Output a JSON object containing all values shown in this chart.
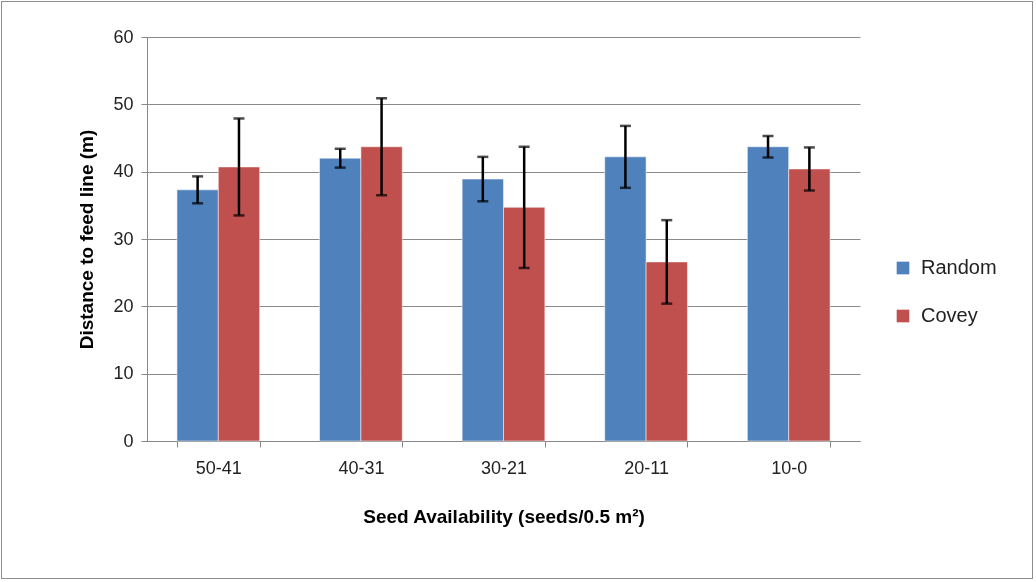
{
  "chart_data": {
    "type": "bar",
    "xlabel": "Seed Availability (seeds/0.5 m²)",
    "ylabel": "Distance to feed line (m)",
    "categories": [
      "50-41",
      "40-31",
      "30-21",
      "20-11",
      "10-0"
    ],
    "series": [
      {
        "name": "Random",
        "color": "#4f81bd",
        "values": [
          37.3,
          42.0,
          38.9,
          42.2,
          43.7
        ],
        "errors": [
          2.0,
          1.4,
          3.3,
          4.6,
          1.6
        ]
      },
      {
        "name": "Covey",
        "color": "#c0504d",
        "values": [
          40.7,
          43.7,
          34.7,
          26.6,
          40.4
        ],
        "errors": [
          7.2,
          7.2,
          9.0,
          6.2,
          3.2
        ]
      }
    ],
    "ylim": [
      0,
      60
    ],
    "yticks": [
      0,
      10,
      20,
      30,
      40,
      50,
      60
    ],
    "grid": "y",
    "legend": "right"
  }
}
